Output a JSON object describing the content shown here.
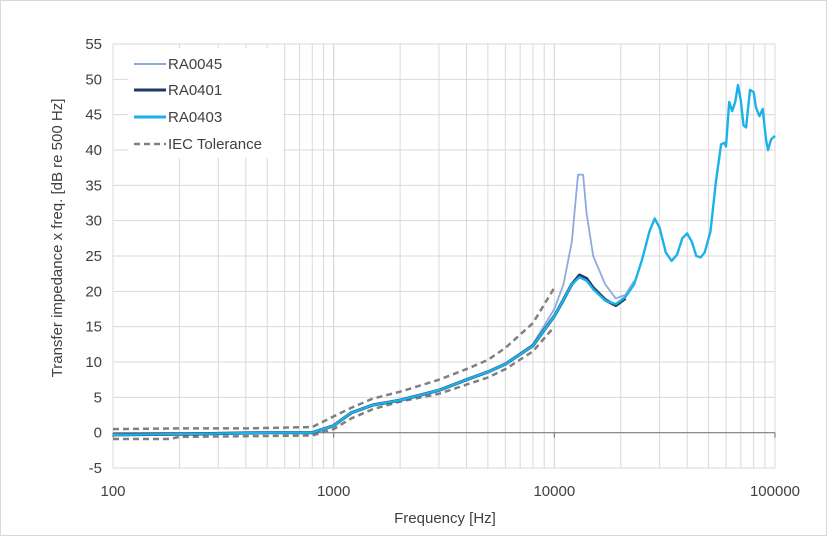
{
  "chart_data": {
    "type": "line",
    "xlabel": "Frequency [Hz]",
    "ylabel": "Transfer impedance x freq. [dB re 500 Hz]",
    "xscale": "log",
    "xlim": [
      100,
      100000
    ],
    "ylim": [
      -5,
      55
    ],
    "x_ticks": [
      100,
      1000,
      10000,
      100000
    ],
    "x_tick_labels": [
      "100",
      "1000",
      "10000",
      "100000"
    ],
    "y_ticks": [
      -5,
      0,
      5,
      10,
      15,
      20,
      25,
      30,
      35,
      40,
      45,
      50,
      55
    ],
    "y_tick_labels": [
      "-5",
      "0",
      "5",
      "10",
      "15",
      "20",
      "25",
      "30",
      "35",
      "40",
      "45",
      "50",
      "55"
    ],
    "grid": "on (major and minor vertical, major horizontal)",
    "legend": "top-left",
    "series": [
      {
        "name": "RA0045",
        "color": "#8faadc",
        "style": "solid",
        "points": [
          [
            100,
            -0.3
          ],
          [
            200,
            -0.2
          ],
          [
            500,
            0
          ],
          [
            800,
            0
          ],
          [
            1000,
            1
          ],
          [
            1200,
            2.8
          ],
          [
            1500,
            3.9
          ],
          [
            2000,
            4.6
          ],
          [
            3000,
            6
          ],
          [
            4000,
            7.5
          ],
          [
            5000,
            8.6
          ],
          [
            6000,
            9.7
          ],
          [
            8000,
            12.5
          ],
          [
            10000,
            17.5
          ],
          [
            11000,
            21
          ],
          [
            12000,
            27
          ],
          [
            12800,
            36.5
          ],
          [
            13500,
            36.5
          ],
          [
            14000,
            31
          ],
          [
            15000,
            25
          ],
          [
            17000,
            21
          ],
          [
            19000,
            19
          ],
          [
            21000,
            19.5
          ],
          [
            23000,
            21.5
          ]
        ]
      },
      {
        "name": "RA0401",
        "color": "#1f3864",
        "style": "solid",
        "points": [
          [
            100,
            -0.3
          ],
          [
            200,
            -0.2
          ],
          [
            500,
            0
          ],
          [
            800,
            0
          ],
          [
            1000,
            1
          ],
          [
            1200,
            2.8
          ],
          [
            1500,
            3.9
          ],
          [
            2000,
            4.6
          ],
          [
            3000,
            6
          ],
          [
            4000,
            7.5
          ],
          [
            5000,
            8.6
          ],
          [
            6000,
            9.7
          ],
          [
            8000,
            12.3
          ],
          [
            10000,
            16.5
          ],
          [
            11000,
            18.8
          ],
          [
            12000,
            21
          ],
          [
            13000,
            22.3
          ],
          [
            14000,
            21.8
          ],
          [
            15000,
            20.5
          ],
          [
            17000,
            18.8
          ],
          [
            19000,
            18
          ],
          [
            21000,
            19
          ]
        ]
      },
      {
        "name": "RA0403",
        "color": "#1ab2e8",
        "style": "solid",
        "points": [
          [
            100,
            -0.3
          ],
          [
            200,
            -0.2
          ],
          [
            500,
            0
          ],
          [
            800,
            0
          ],
          [
            1000,
            1
          ],
          [
            1200,
            2.8
          ],
          [
            1500,
            3.9
          ],
          [
            2000,
            4.6
          ],
          [
            3000,
            6
          ],
          [
            4000,
            7.5
          ],
          [
            5000,
            8.6
          ],
          [
            6000,
            9.7
          ],
          [
            8000,
            12.3
          ],
          [
            10000,
            16.5
          ],
          [
            11000,
            18.8
          ],
          [
            12000,
            21
          ],
          [
            13000,
            22
          ],
          [
            14000,
            21.5
          ],
          [
            15000,
            20.3
          ],
          [
            17000,
            18.7
          ],
          [
            19000,
            18.2
          ],
          [
            21000,
            19.2
          ],
          [
            23000,
            21
          ],
          [
            25000,
            24.5
          ],
          [
            27000,
            28.5
          ],
          [
            28500,
            30.3
          ],
          [
            30000,
            29
          ],
          [
            32000,
            25.5
          ],
          [
            34000,
            24.3
          ],
          [
            36000,
            25.2
          ],
          [
            38000,
            27.5
          ],
          [
            40000,
            28.2
          ],
          [
            42000,
            27
          ],
          [
            44000,
            25
          ],
          [
            46000,
            24.8
          ],
          [
            48000,
            25.5
          ],
          [
            51000,
            28.5
          ],
          [
            54000,
            35.5
          ],
          [
            57000,
            40.8
          ],
          [
            59000,
            41
          ],
          [
            60000,
            40.5
          ],
          [
            62000,
            46.8
          ],
          [
            64000,
            45.5
          ],
          [
            66000,
            46.8
          ],
          [
            68000,
            49.2
          ],
          [
            70000,
            47
          ],
          [
            72000,
            43.5
          ],
          [
            74000,
            43.2
          ],
          [
            77000,
            48.5
          ],
          [
            80000,
            48.2
          ],
          [
            82000,
            46
          ],
          [
            85000,
            44.8
          ],
          [
            88000,
            45.8
          ],
          [
            91000,
            41.5
          ],
          [
            93000,
            40
          ],
          [
            96000,
            41.5
          ],
          [
            100000,
            42
          ]
        ]
      },
      {
        "name": "IEC Tolerance",
        "color": "#808080",
        "style": "dashed",
        "upper": [
          [
            100,
            0.5
          ],
          [
            200,
            0.6
          ],
          [
            400,
            0.6
          ],
          [
            800,
            0.8
          ],
          [
            1000,
            2.3
          ],
          [
            1200,
            3.5
          ],
          [
            1500,
            4.8
          ],
          [
            2000,
            5.8
          ],
          [
            3000,
            7.5
          ],
          [
            4000,
            9
          ],
          [
            5000,
            10.3
          ],
          [
            6000,
            12
          ],
          [
            8000,
            15.5
          ],
          [
            10000,
            20.5
          ]
        ],
        "lower": [
          [
            100,
            -0.9
          ],
          [
            180,
            -0.9
          ],
          [
            200,
            -0.6
          ],
          [
            400,
            -0.5
          ],
          [
            800,
            -0.4
          ],
          [
            1000,
            0.5
          ],
          [
            1200,
            2
          ],
          [
            1500,
            3.3
          ],
          [
            2000,
            4.4
          ],
          [
            3000,
            5.5
          ],
          [
            4000,
            6.8
          ],
          [
            5000,
            7.8
          ],
          [
            6000,
            9
          ],
          [
            8000,
            11.5
          ],
          [
            10000,
            15
          ]
        ]
      }
    ]
  }
}
